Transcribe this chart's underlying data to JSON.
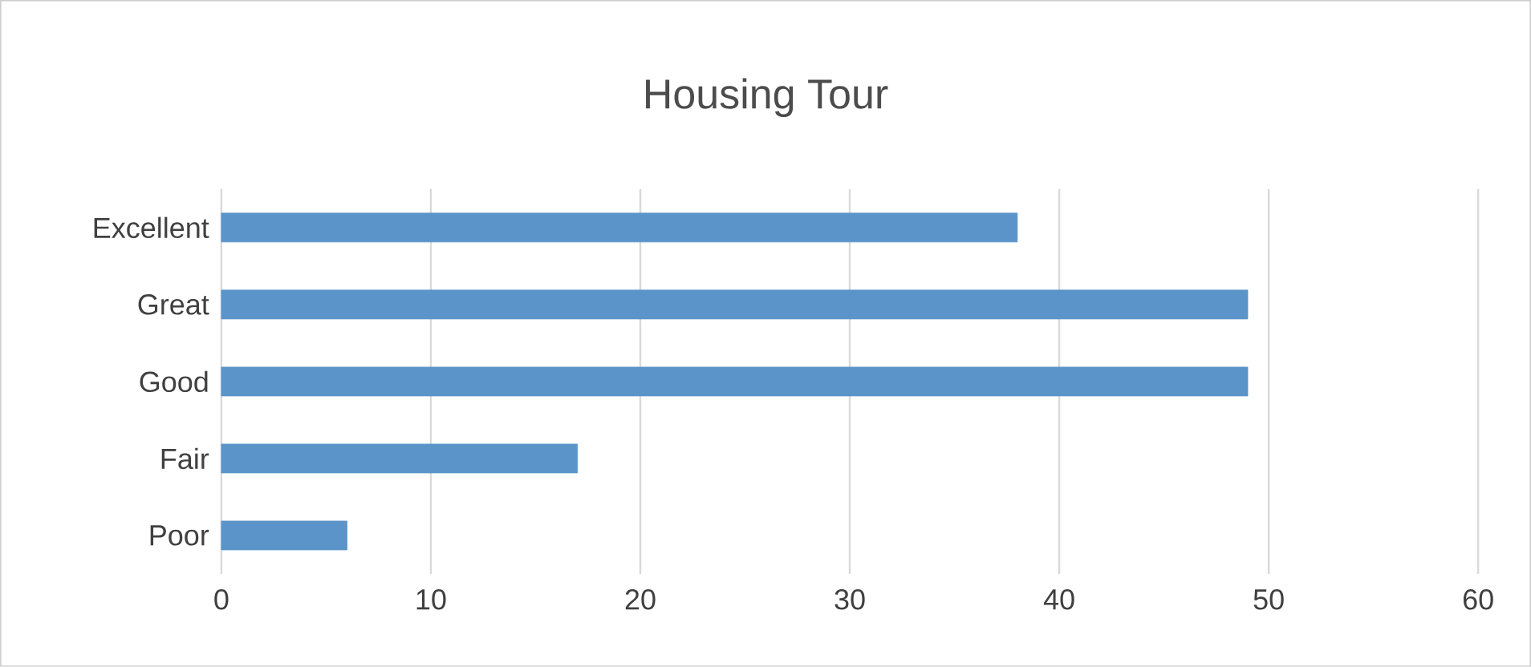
{
  "chart_data": {
    "type": "bar",
    "orientation": "horizontal",
    "title": "Housing Tour",
    "categories": [
      "Excellent",
      "Great",
      "Good",
      "Fair",
      "Poor"
    ],
    "values": [
      38,
      49,
      49,
      17,
      6
    ],
    "color": "#5b94c9",
    "xlim": [
      0,
      60
    ],
    "xticks": [
      0,
      10,
      20,
      30,
      40,
      50,
      60
    ],
    "grid": "x"
  }
}
